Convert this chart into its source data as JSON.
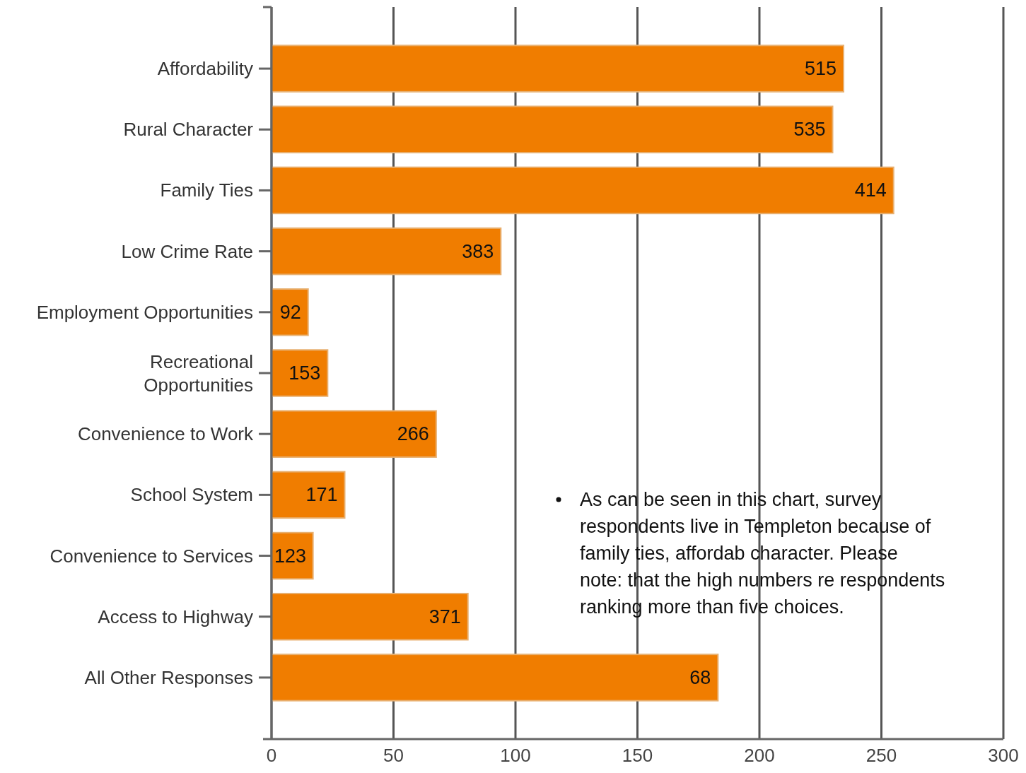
{
  "chart_data": {
    "type": "bar",
    "orientation": "horizontal",
    "categories": [
      "Affordability",
      "Rural Character",
      "Family Ties",
      "Low Crime Rate",
      "Employment Opportunities",
      "Recreational Opportunities",
      "Convenience to Work",
      "School System",
      "Convenience to Services",
      "Access to Highway",
      "All Other Responses"
    ],
    "values": [
      234.5,
      230,
      255,
      94,
      15,
      23,
      67.5,
      30,
      17,
      80.5,
      183
    ],
    "color": "#f07d00",
    "xlim": [
      0,
      300
    ],
    "xticks": [
      0,
      50,
      100,
      150,
      200,
      250,
      300
    ],
    "grid": "x",
    "annotations": [
      {
        "text": "515",
        "x": 234.5,
        "y": "Affordability"
      },
      {
        "text": "535",
        "x": 230,
        "y": "Rural Character"
      },
      {
        "text": "414",
        "x": 255,
        "y": "Family Ties"
      },
      {
        "text": "383",
        "x": 94,
        "y": "Low Crime Rate"
      },
      {
        "text": "92",
        "x": 15,
        "y": "Employment Opportunities"
      },
      {
        "text": "153",
        "x": 23,
        "y": "Recreational Opportunities"
      },
      {
        "text": "266",
        "x": 67.5,
        "y": "Convenience to Work"
      },
      {
        "text": "171",
        "x": 30,
        "y": "School System"
      },
      {
        "text": "123",
        "x": 17,
        "y": "Convenience to Services"
      },
      {
        "text": "371",
        "x": 80.5,
        "y": "Access to Highway"
      },
      {
        "text": "68",
        "x": 183,
        "y": "All Other Responses"
      },
      "As can be seen in this chart, survey respondents live in Templeton because of family ties, affordab character.  Please note:  that the high numbers re respondents ranking more than five choices."
    ]
  }
}
